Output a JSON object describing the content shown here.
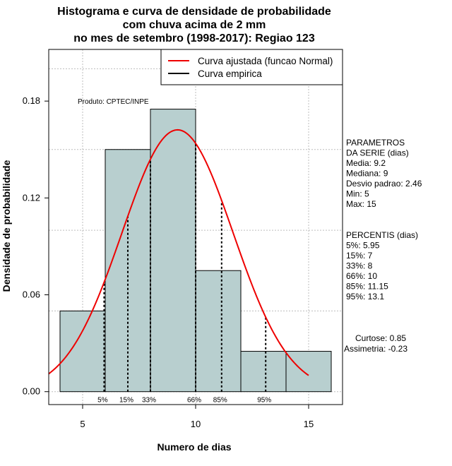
{
  "chart_data": {
    "type": "histogram",
    "title": [
      "Histograma e curva de densidade de probabilidade",
      "com chuva acima de 2 mm",
      "no mes de setembro (1998-2017): Regiao 123"
    ],
    "xlabel": "Numero de dias",
    "ylabel": "Densidade de probabilidade",
    "xlim": [
      3.5,
      16.5
    ],
    "ylim": [
      -0.008,
      0.212
    ],
    "x_ticks": [
      5,
      10,
      15
    ],
    "x_tick_labels": [
      "5",
      "10",
      "15"
    ],
    "y_ticks": [
      0.0,
      0.06,
      0.12,
      0.18
    ],
    "y_tick_labels": [
      "0.00",
      "0.06",
      "0.12",
      "0.18"
    ],
    "grid_x": [
      5,
      10,
      15
    ],
    "grid_y": [
      0.0,
      0.05,
      0.1,
      0.15,
      0.2
    ],
    "bins": [
      {
        "x0": 4,
        "x1": 6,
        "density": 0.05
      },
      {
        "x0": 6,
        "x1": 8,
        "density": 0.15
      },
      {
        "x0": 8,
        "x1": 10,
        "density": 0.175
      },
      {
        "x0": 10,
        "x1": 12,
        "density": 0.075
      },
      {
        "x0": 12,
        "x1": 14,
        "density": 0.025
      },
      {
        "x0": 14,
        "x1": 16,
        "density": 0.025
      }
    ],
    "bar_color": "#b8cfcf",
    "curve_color": "#ee0000",
    "normal_fit": {
      "mean": 9.2,
      "sd": 2.46,
      "x_range": [
        3.5,
        15
      ]
    },
    "percentiles": [
      {
        "label": "5%",
        "x": 5.95
      },
      {
        "label": "15%",
        "x": 7
      },
      {
        "label": "33%",
        "x": 8
      },
      {
        "label": "66%",
        "x": 10
      },
      {
        "label": "85%",
        "x": 11.15
      },
      {
        "label": "95%",
        "x": 13.1
      }
    ],
    "legend": {
      "position": "top-right",
      "entries": [
        {
          "label": "Curva ajustada (funcao Normal)",
          "color": "#ee0000"
        },
        {
          "label": "Curva empirica",
          "color": "#000000"
        }
      ]
    },
    "annotation": "Produto: CPTEC/INPE",
    "side_panel": {
      "params": [
        "PARAMETROS",
        "DA SERIE (dias)",
        "   Media: 9.2",
        "   Mediana: 9",
        "   Desvio padrao: 2.46",
        "   Min: 5",
        "   Max: 15"
      ],
      "percentis": [
        "PERCENTIS (dias)",
        "   5%: 5.95",
        "   15%: 7",
        "   33%: 8",
        "   66%: 10",
        "   85%: 11.15",
        "   95%: 13.1"
      ],
      "curtose": "Curtose: 0.85",
      "assimetria": "Assimetria: -0.23"
    }
  }
}
